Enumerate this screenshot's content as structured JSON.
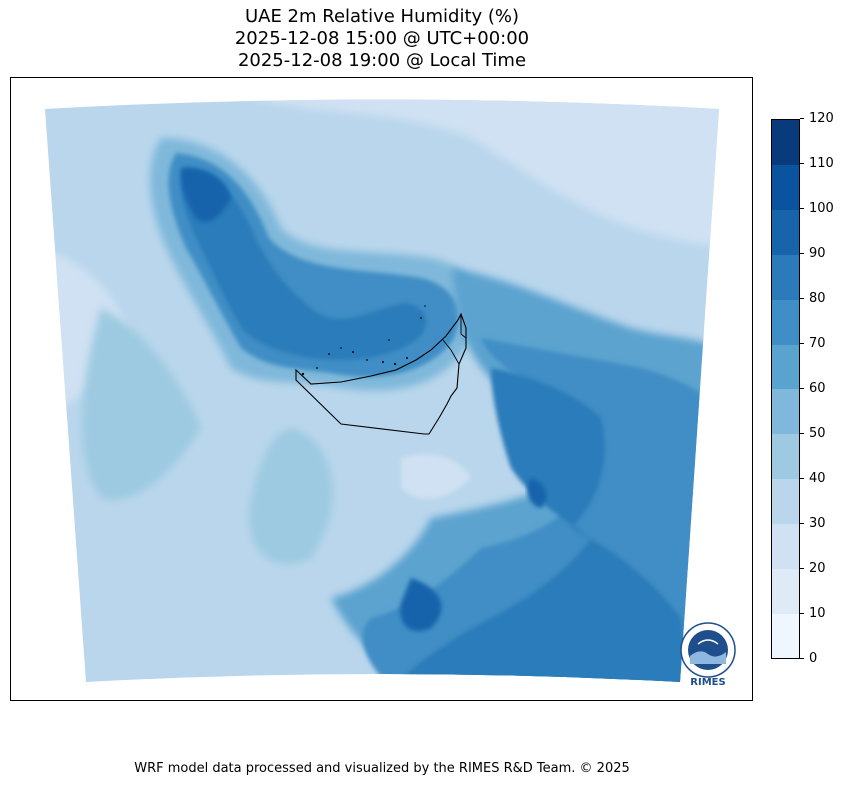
{
  "title": {
    "line1": "UAE 2m Relative Humidity (%)",
    "line2": "2025-12-08 15:00 @ UTC+00:00",
    "line3": "2025-12-08 19:00 @ Local Time"
  },
  "colorbar": {
    "ticks": [
      "0",
      "10",
      "20",
      "30",
      "40",
      "50",
      "60",
      "70",
      "80",
      "90",
      "100",
      "110",
      "120"
    ],
    "colors": [
      "#f0f6fd",
      "#deebf7",
      "#cfe1f2",
      "#b9d6ec",
      "#9dcae1",
      "#7fb8da",
      "#5ba3cf",
      "#3f8ec5",
      "#2b7bba",
      "#1764ab",
      "#0a539e",
      "#083b7b"
    ]
  },
  "logo": {
    "text": "RIMES"
  },
  "footer": {
    "text": "WRF model data processed and visualized by the RIMES R&D Team. © 2025"
  }
}
